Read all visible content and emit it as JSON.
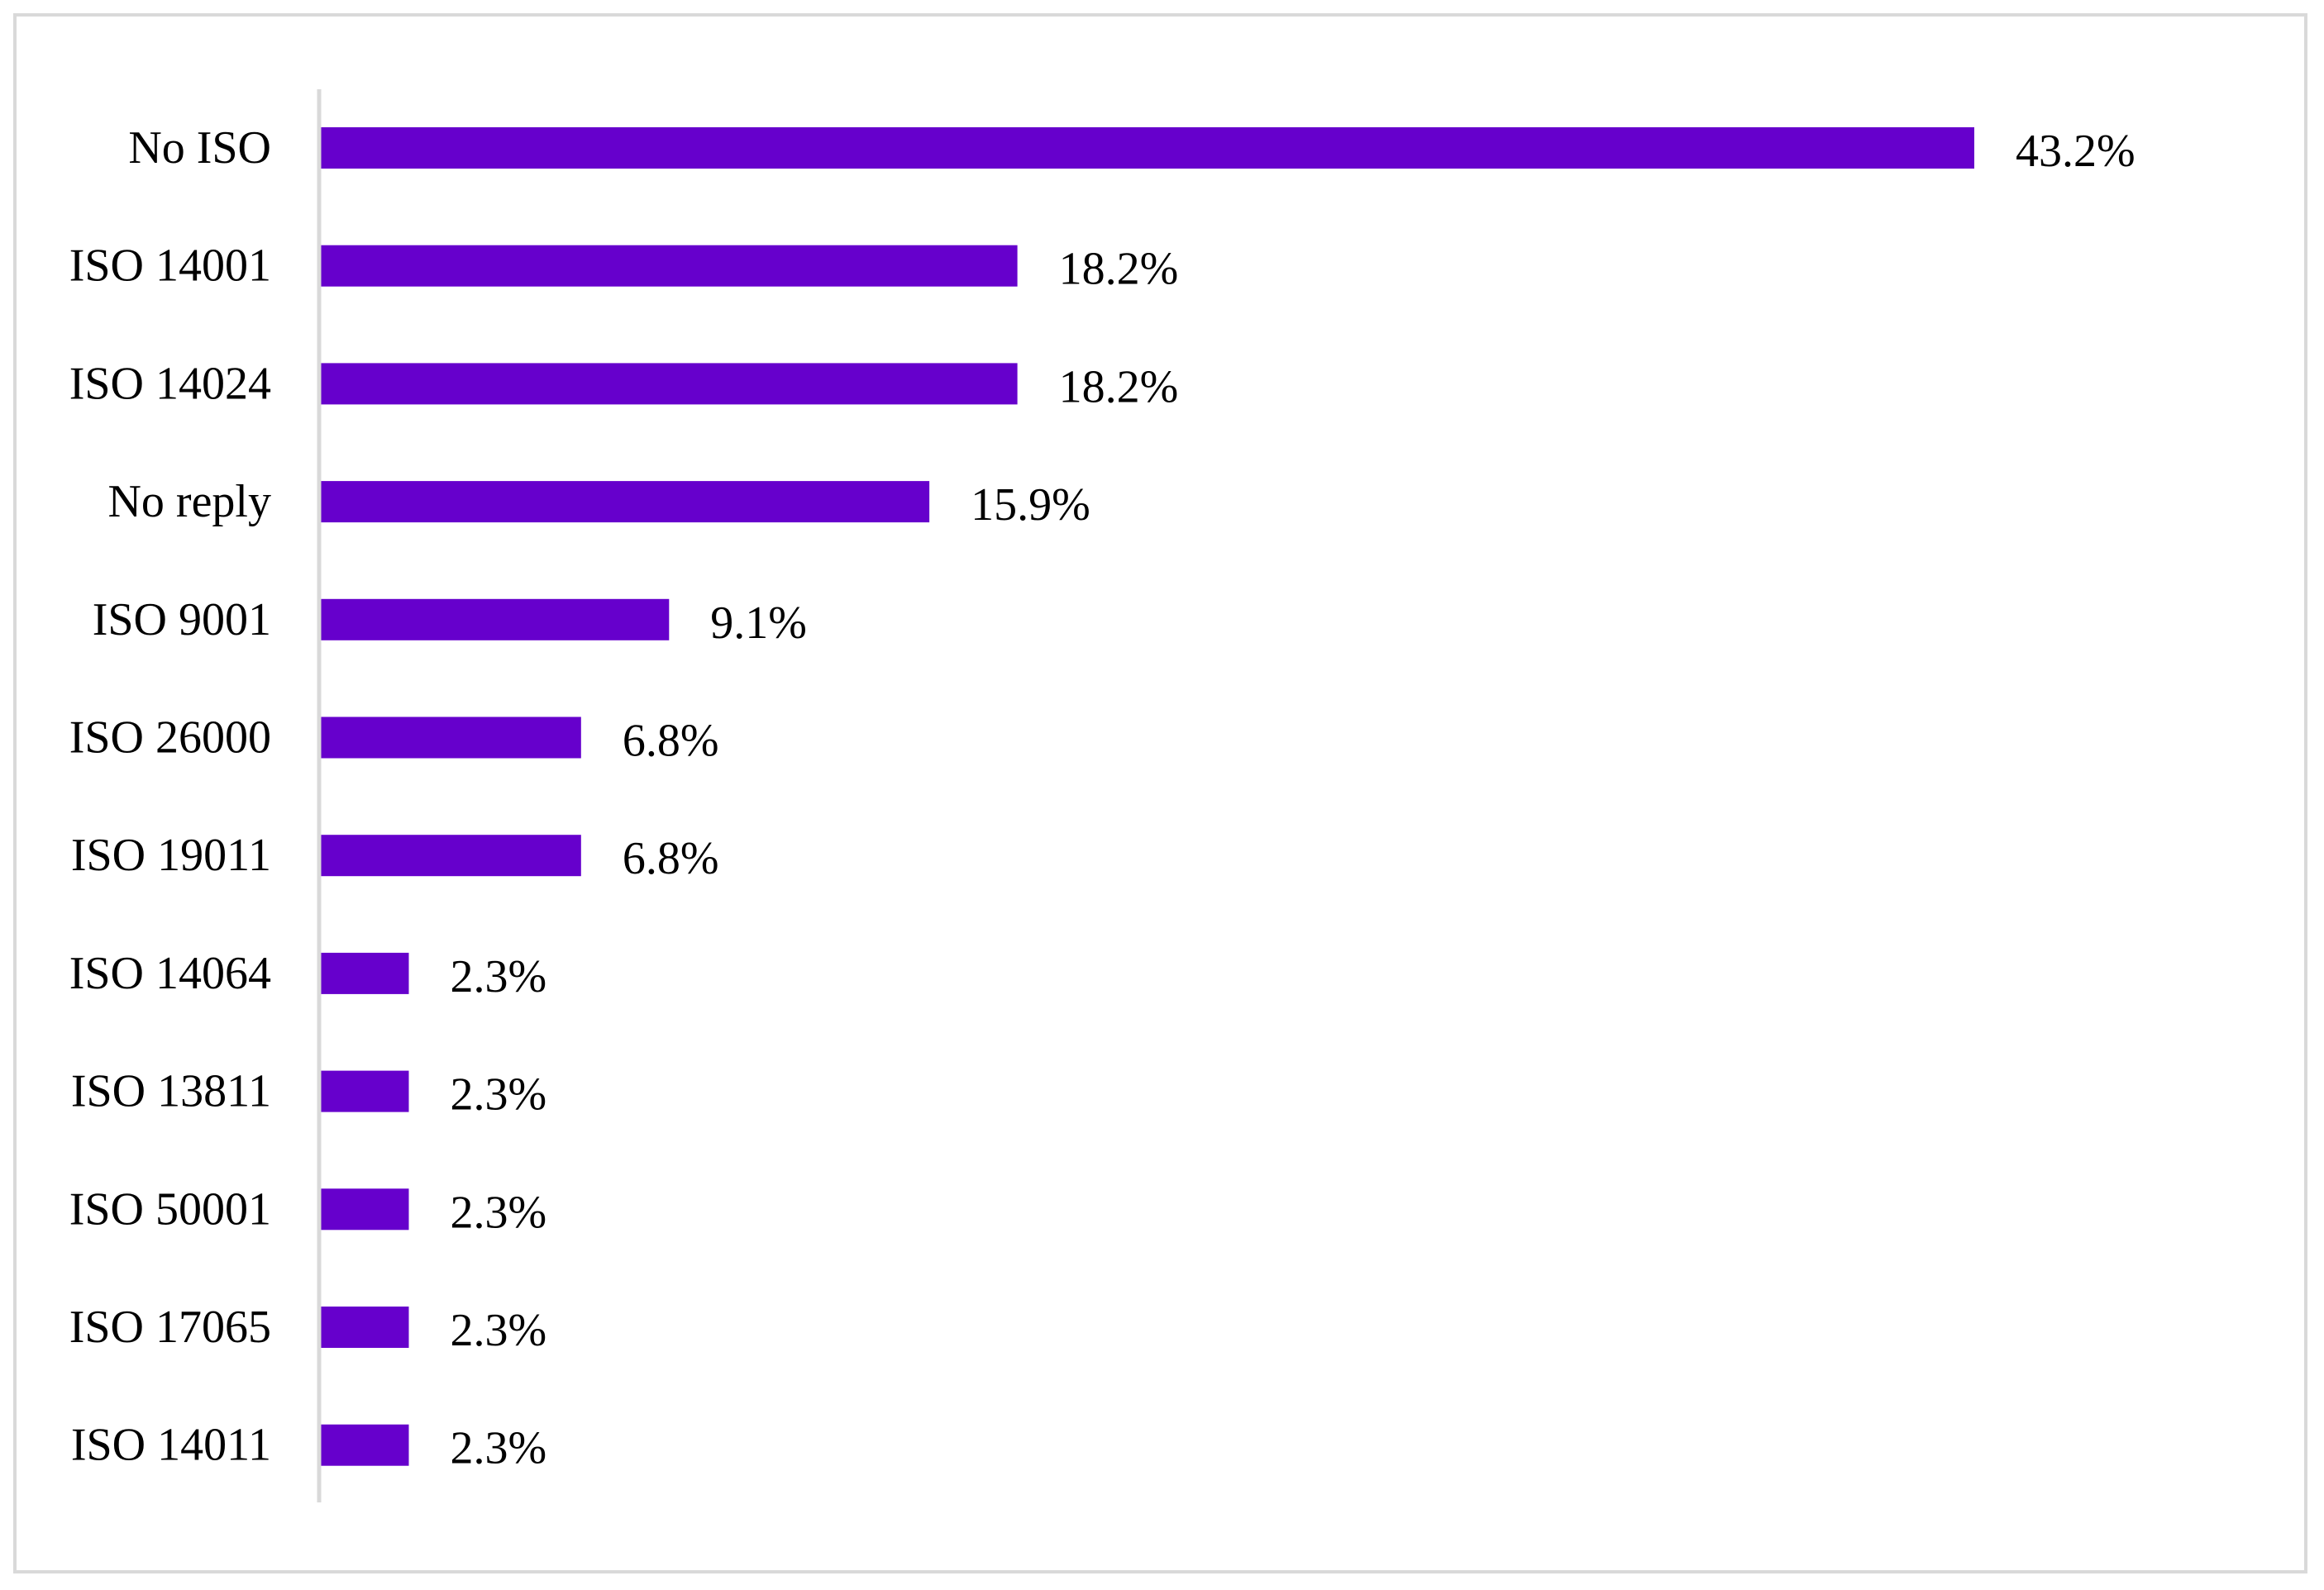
{
  "chart_data": {
    "type": "bar",
    "orientation": "horizontal",
    "categories": [
      "No ISO",
      "ISO 14001",
      "ISO 14024",
      "No reply",
      "ISO 9001",
      "ISO 26000",
      "ISO 19011",
      "ISO 14064",
      "ISO 13811",
      "ISO 50001",
      "ISO 17065",
      "ISO 14011"
    ],
    "values": [
      43.2,
      18.2,
      18.2,
      15.9,
      9.1,
      6.8,
      6.8,
      2.3,
      2.3,
      2.3,
      2.3,
      2.3
    ],
    "value_labels": [
      "43.2%",
      "18.2%",
      "18.2%",
      "15.9%",
      "9.1%",
      "6.8%",
      "6.8%",
      "2.3%",
      "2.3%",
      "2.3%",
      "2.3%",
      "2.3%"
    ],
    "xlim": [
      0,
      43.2
    ],
    "grid": false,
    "legend": "none",
    "bar_color": "#6600cc",
    "axis_color": "#d9d9d9"
  }
}
